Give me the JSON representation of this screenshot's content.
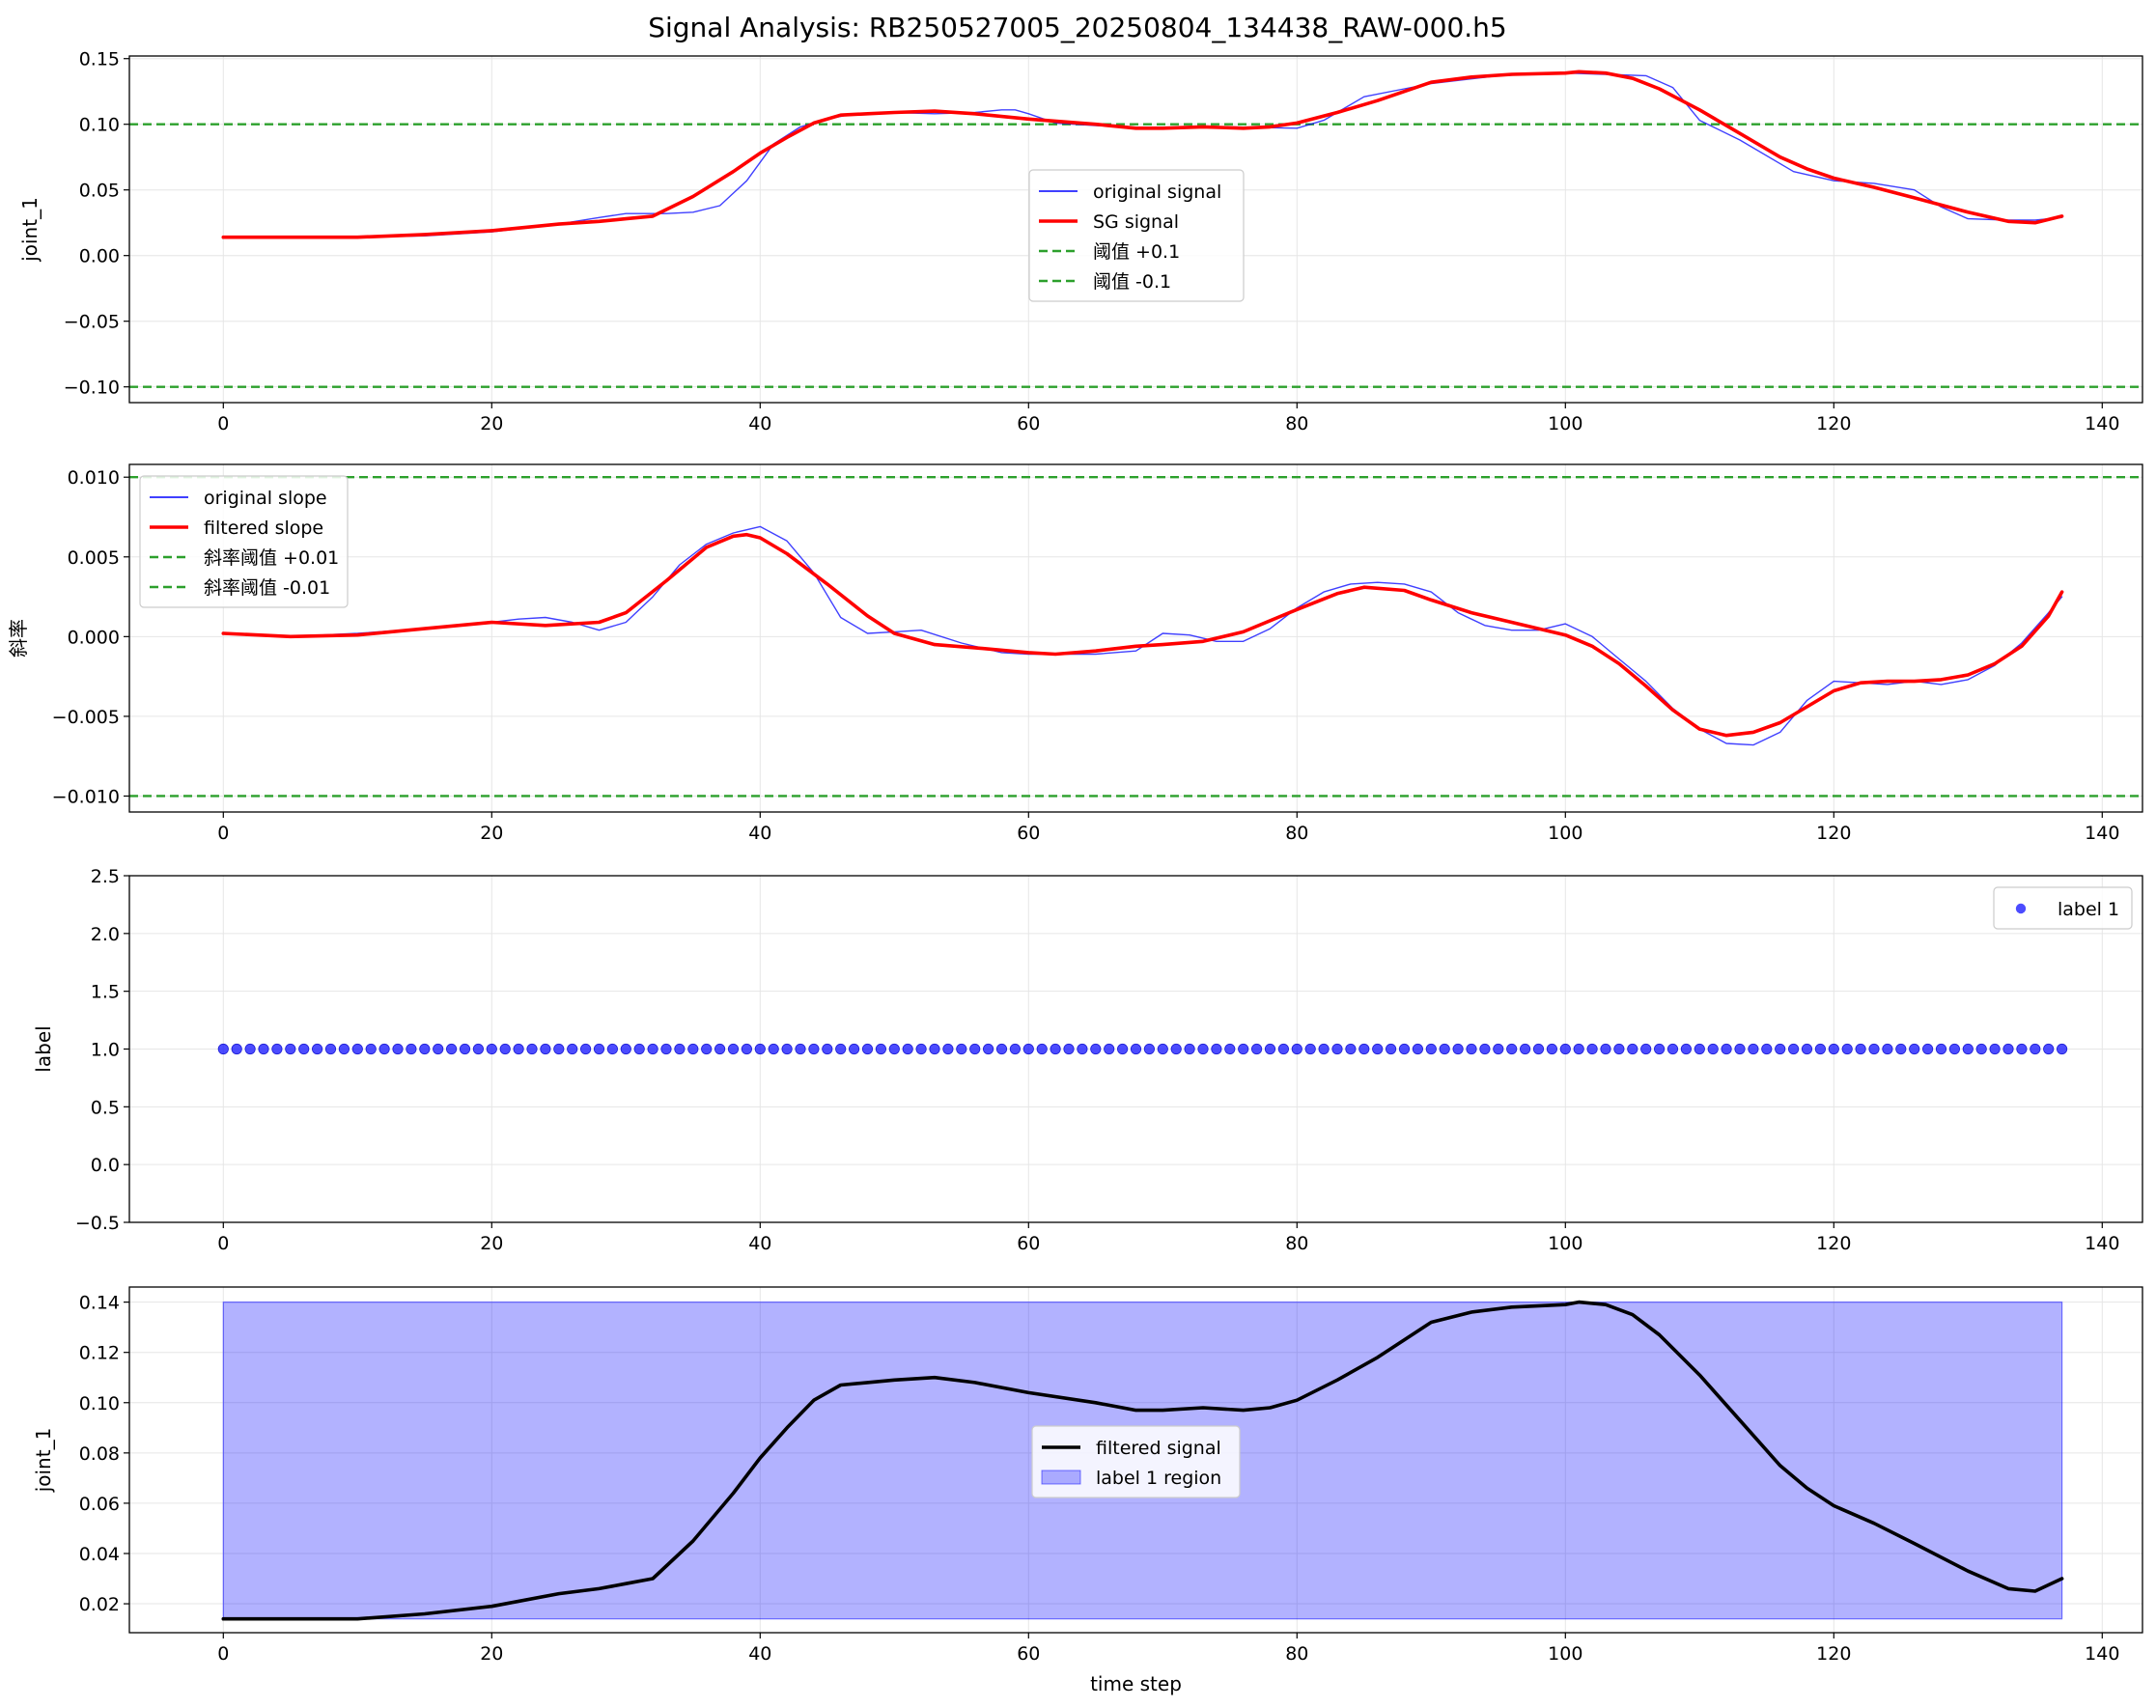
{
  "figure": {
    "title": "Signal Analysis: RB250527005_20250804_134438_RAW-000.h5"
  },
  "chart_data": [
    {
      "type": "line",
      "title": "",
      "xlabel": "",
      "ylabel": "joint_1",
      "xlim": [
        -7,
        143
      ],
      "ylim": [
        -0.112,
        0.152
      ],
      "xticks": [
        0,
        20,
        40,
        60,
        80,
        100,
        120,
        140
      ],
      "xtick_labels": [
        "0",
        "20",
        "40",
        "60",
        "80",
        "100",
        "120",
        "140"
      ],
      "yticks": [
        -0.1,
        -0.05,
        0.0,
        0.05,
        0.1,
        0.15
      ],
      "ytick_labels": [
        "−0.10",
        "−0.05",
        "0.00",
        "0.05",
        "0.10",
        "0.15"
      ],
      "grid": true,
      "legend": "center",
      "series": [
        {
          "name": "original signal",
          "color": "#0000ff",
          "style": "thin",
          "x": [
            0,
            5,
            10,
            15,
            20,
            25,
            28,
            30,
            33,
            35,
            37,
            39,
            41,
            43,
            45,
            47,
            50,
            53,
            56,
            58,
            59,
            60,
            62,
            65,
            70,
            75,
            80,
            82,
            85,
            88,
            90,
            95,
            100,
            103,
            106,
            108,
            110,
            113,
            117,
            120,
            123,
            126,
            128,
            130,
            133,
            135,
            137
          ],
          "y": [
            0.014,
            0.014,
            0.014,
            0.015,
            0.018,
            0.024,
            0.029,
            0.032,
            0.032,
            0.033,
            0.038,
            0.057,
            0.085,
            0.098,
            0.104,
            0.108,
            0.109,
            0.108,
            0.109,
            0.111,
            0.111,
            0.108,
            0.101,
            0.099,
            0.097,
            0.098,
            0.097,
            0.103,
            0.121,
            0.127,
            0.131,
            0.137,
            0.139,
            0.138,
            0.137,
            0.128,
            0.103,
            0.088,
            0.064,
            0.057,
            0.055,
            0.05,
            0.037,
            0.028,
            0.027,
            0.027,
            0.029
          ]
        },
        {
          "name": "SG signal",
          "color": "#ff0000",
          "style": "thick",
          "x": [
            0,
            5,
            10,
            15,
            20,
            25,
            28,
            30,
            32,
            35,
            38,
            40,
            42,
            44,
            46,
            48,
            50,
            53,
            56,
            60,
            65,
            68,
            70,
            73,
            76,
            78,
            80,
            83,
            86,
            90,
            93,
            96,
            100,
            101,
            103,
            105,
            107,
            110,
            113,
            116,
            118,
            120,
            123,
            126,
            130,
            133,
            135,
            137
          ],
          "y": [
            0.014,
            0.014,
            0.014,
            0.016,
            0.019,
            0.024,
            0.026,
            0.028,
            0.03,
            0.045,
            0.064,
            0.078,
            0.09,
            0.101,
            0.107,
            0.108,
            0.109,
            0.11,
            0.108,
            0.104,
            0.1,
            0.097,
            0.097,
            0.098,
            0.097,
            0.098,
            0.101,
            0.109,
            0.118,
            0.132,
            0.136,
            0.138,
            0.139,
            0.14,
            0.139,
            0.135,
            0.127,
            0.111,
            0.093,
            0.075,
            0.066,
            0.059,
            0.052,
            0.044,
            0.033,
            0.026,
            0.025,
            0.03
          ]
        },
        {
          "name": "阈值 +0.1",
          "color": "#2ca02c",
          "style": "dashed",
          "hline": 0.1
        },
        {
          "name": "阈值 -0.1",
          "color": "#2ca02c",
          "style": "dashed",
          "hline": -0.1
        }
      ]
    },
    {
      "type": "line",
      "title": "",
      "xlabel": "",
      "ylabel": "斜率",
      "xlim": [
        -7,
        143
      ],
      "ylim": [
        -0.011,
        0.0108
      ],
      "xticks": [
        0,
        20,
        40,
        60,
        80,
        100,
        120,
        140
      ],
      "xtick_labels": [
        "0",
        "20",
        "40",
        "60",
        "80",
        "100",
        "120",
        "140"
      ],
      "yticks": [
        -0.01,
        -0.005,
        0.0,
        0.005,
        0.01
      ],
      "ytick_labels": [
        "−0.010",
        "−0.005",
        "0.000",
        "0.005",
        "0.010"
      ],
      "grid": true,
      "legend": "upper left",
      "series": [
        {
          "name": "original slope",
          "color": "#0000ff",
          "style": "thin",
          "x": [
            0,
            5,
            10,
            15,
            20,
            22,
            24,
            26,
            28,
            30,
            32,
            34,
            36,
            38,
            40,
            42,
            44,
            46,
            48,
            50,
            52,
            55,
            58,
            60,
            62,
            65,
            68,
            70,
            72,
            74,
            76,
            78,
            80,
            82,
            84,
            86,
            88,
            90,
            92,
            94,
            96,
            98,
            100,
            102,
            104,
            106,
            108,
            110,
            112,
            114,
            116,
            118,
            120,
            122,
            124,
            126,
            128,
            130,
            132,
            134,
            136,
            137
          ],
          "y": [
            0.0002,
            0.0,
            0.0002,
            0.0005,
            0.0009,
            0.0011,
            0.0012,
            0.0009,
            0.0004,
            0.0009,
            0.0025,
            0.0045,
            0.0058,
            0.0065,
            0.0069,
            0.006,
            0.004,
            0.0012,
            0.0002,
            0.0003,
            0.0004,
            -0.0004,
            -0.001,
            -0.0011,
            -0.0011,
            -0.0011,
            -0.0009,
            0.0002,
            0.0001,
            -0.0003,
            -0.0003,
            0.0005,
            0.0018,
            0.0028,
            0.0033,
            0.0034,
            0.0033,
            0.0028,
            0.0015,
            0.0007,
            0.0004,
            0.0004,
            0.0008,
            0.0,
            -0.0014,
            -0.0028,
            -0.0045,
            -0.0058,
            -0.0067,
            -0.0068,
            -0.006,
            -0.004,
            -0.0028,
            -0.0029,
            -0.003,
            -0.0028,
            -0.003,
            -0.0027,
            -0.0018,
            -0.0004,
            0.0015,
            0.0025
          ]
        },
        {
          "name": "filtered slope",
          "color": "#ff0000",
          "style": "thick",
          "x": [
            0,
            5,
            10,
            15,
            20,
            24,
            28,
            30,
            33,
            36,
            38,
            39,
            40,
            42,
            45,
            48,
            50,
            53,
            56,
            60,
            62,
            65,
            68,
            70,
            73,
            76,
            80,
            83,
            85,
            88,
            90,
            93,
            96,
            98,
            100,
            102,
            104,
            106,
            108,
            110,
            112,
            114,
            116,
            118,
            120,
            122,
            124,
            126,
            128,
            130,
            132,
            134,
            136,
            137
          ],
          "y": [
            0.0002,
            0.0,
            0.0001,
            0.0005,
            0.0009,
            0.0007,
            0.0009,
            0.0015,
            0.0035,
            0.0056,
            0.0063,
            0.0064,
            0.0062,
            0.0052,
            0.0033,
            0.0013,
            0.0002,
            -0.0005,
            -0.0007,
            -0.001,
            -0.0011,
            -0.0009,
            -0.0006,
            -0.0005,
            -0.0003,
            0.0003,
            0.0017,
            0.0027,
            0.0031,
            0.0029,
            0.0023,
            0.0015,
            0.0009,
            0.0005,
            0.0001,
            -0.0006,
            -0.0017,
            -0.0031,
            -0.0046,
            -0.0058,
            -0.0062,
            -0.006,
            -0.0054,
            -0.0044,
            -0.0034,
            -0.0029,
            -0.0028,
            -0.0028,
            -0.0027,
            -0.0024,
            -0.0017,
            -0.0006,
            0.0013,
            0.0028
          ]
        },
        {
          "name": "斜率阈值 +0.01",
          "color": "#2ca02c",
          "style": "dashed",
          "hline": 0.01
        },
        {
          "name": "斜率阈值 -0.01",
          "color": "#2ca02c",
          "style": "dashed",
          "hline": -0.01
        }
      ]
    },
    {
      "type": "scatter",
      "title": "",
      "xlabel": "",
      "ylabel": "label",
      "xlim": [
        -7,
        143
      ],
      "ylim": [
        -0.5,
        2.5
      ],
      "xticks": [
        0,
        20,
        40,
        60,
        80,
        100,
        120,
        140
      ],
      "xtick_labels": [
        "0",
        "20",
        "40",
        "60",
        "80",
        "100",
        "120",
        "140"
      ],
      "yticks": [
        -0.5,
        0.0,
        0.5,
        1.0,
        1.5,
        2.0,
        2.5
      ],
      "ytick_labels": [
        "−0.5",
        "0.0",
        "0.5",
        "1.0",
        "1.5",
        "2.0",
        "2.5"
      ],
      "grid": true,
      "legend": "upper right",
      "series": [
        {
          "name": "label 1",
          "color": "#0000ff",
          "x_range": [
            0,
            137
          ],
          "y_constant": 1.0
        }
      ]
    },
    {
      "type": "area",
      "title": "",
      "xlabel": "time step",
      "ylabel": "joint_1",
      "xlim": [
        -7,
        143
      ],
      "ylim": [
        0.0085,
        0.146
      ],
      "xticks": [
        0,
        20,
        40,
        60,
        80,
        100,
        120,
        140
      ],
      "xtick_labels": [
        "0",
        "20",
        "40",
        "60",
        "80",
        "100",
        "120",
        "140"
      ],
      "yticks": [
        0.02,
        0.04,
        0.06,
        0.08,
        0.1,
        0.12,
        0.14
      ],
      "ytick_labels": [
        "0.02",
        "0.04",
        "0.06",
        "0.08",
        "0.10",
        "0.12",
        "0.14"
      ],
      "grid": true,
      "legend": "center",
      "series": [
        {
          "name": "filtered signal",
          "color": "#000000",
          "style": "thick",
          "x": [
            0,
            5,
            10,
            15,
            20,
            25,
            28,
            30,
            32,
            35,
            38,
            40,
            42,
            44,
            46,
            48,
            50,
            53,
            56,
            60,
            65,
            68,
            70,
            73,
            76,
            78,
            80,
            83,
            86,
            90,
            93,
            96,
            100,
            101,
            103,
            105,
            107,
            110,
            113,
            116,
            118,
            120,
            123,
            126,
            130,
            133,
            135,
            137
          ],
          "y": [
            0.014,
            0.014,
            0.014,
            0.016,
            0.019,
            0.024,
            0.026,
            0.028,
            0.03,
            0.045,
            0.064,
            0.078,
            0.09,
            0.101,
            0.107,
            0.108,
            0.109,
            0.11,
            0.108,
            0.104,
            0.1,
            0.097,
            0.097,
            0.098,
            0.097,
            0.098,
            0.101,
            0.109,
            0.118,
            0.132,
            0.136,
            0.138,
            0.139,
            0.14,
            0.139,
            0.135,
            0.127,
            0.111,
            0.093,
            0.075,
            0.066,
            0.059,
            0.052,
            0.044,
            0.033,
            0.026,
            0.025,
            0.03
          ]
        },
        {
          "name": "label 1 region",
          "color": "#0000ff",
          "fill_alpha": 0.3,
          "x_range": [
            0,
            137
          ],
          "y_range": [
            0.014,
            0.14
          ]
        }
      ]
    }
  ]
}
